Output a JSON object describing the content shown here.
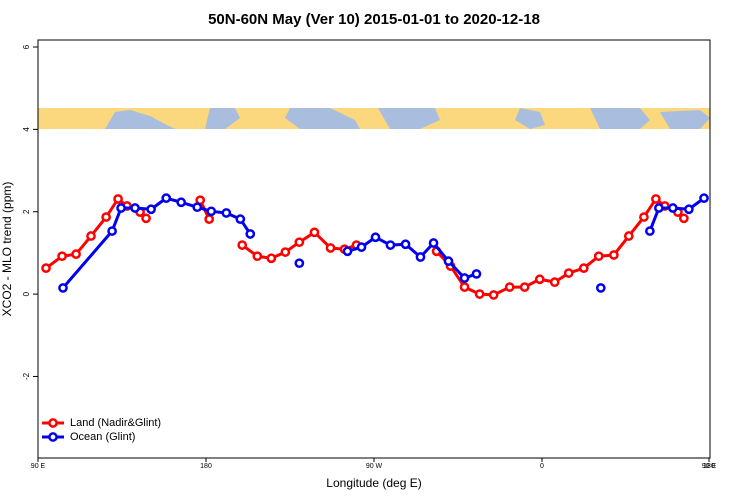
{
  "chart_data": {
    "type": "line",
    "title": "50N-60N May (Ver 10)   2015-01-01 to 2020-12-18",
    "x_label": "Longitude (deg E)",
    "y_label": "XCO2 - MLO trend (ppm)",
    "xlim": [
      90,
      450
    ],
    "xticks": [
      {
        "value": 90,
        "label": "90 E"
      },
      180,
      {
        "value": 270,
        "label": "90 W"
      },
      {
        "value": 360,
        "label": "0"
      },
      {
        "value": 450,
        "label": "90 E"
      },
      {
        "value": 540,
        "label": "180"
      }
    ],
    "ylim": [
      -3.98,
      6.17
    ],
    "yticks": [
      -2,
      0,
      2,
      4,
      6
    ],
    "legend": "bottom-left",
    "series": [
      {
        "name": "Land (Nadir&Glint)",
        "color": "#ff0000",
        "x": [
          94.3,
          102.9,
          110.4,
          118.4,
          126.5,
          132.9,
          137.7,
          144.7,
          147.9,
          null,
          176.9,
          181.7,
          null,
          199.4,
          207.5,
          215,
          222.5,
          230,
          238.1,
          246.7,
          254.2,
          260.6,
          null,
          303.5,
          311,
          318.5,
          326.6,
          334.1,
          342.7,
          350.7,
          358.8,
          366.8,
          374.3,
          382.4,
          390.4,
          398.5,
          406.5,
          414.6,
          421,
          425.8,
          432.8,
          436
        ],
        "values": [
          0.63,
          0.92,
          0.97,
          1.41,
          1.87,
          2.31,
          2.14,
          1.99,
          1.84,
          null,
          2.28,
          1.82,
          null,
          1.19,
          0.92,
          0.87,
          1.02,
          1.26,
          1.5,
          1.12,
          1.09,
          1.19,
          null,
          1.04,
          0.68,
          0.17,
          0,
          -0.02,
          0.17,
          0.17,
          0.36,
          0.29,
          0.51,
          0.63,
          0.92,
          0.95,
          1.41,
          1.87,
          2.31,
          2.14,
          1.99,
          1.84
        ]
      },
      {
        "name": "Ocean (Glint)",
        "color": "#0000ee",
        "x": [
          103.4,
          129.7,
          134.5,
          142,
          150.6,
          158.7,
          166.7,
          175.3,
          182.8,
          190.9,
          198.4,
          203.7,
          null,
          230,
          null,
          255.8,
          263.3,
          270.8,
          278.8,
          286.9,
          294.9,
          301.9,
          309.9,
          318.5,
          324.9,
          null,
          391.5,
          null,
          417.8,
          422.6,
          430.1,
          438.7,
          446.8
        ],
        "values": [
          0.15,
          1.53,
          2.09,
          2.09,
          2.06,
          2.33,
          2.23,
          2.11,
          2.01,
          1.97,
          1.82,
          1.46,
          null,
          0.75,
          null,
          1.04,
          1.14,
          1.38,
          1.19,
          1.21,
          0.9,
          1.24,
          0.8,
          0.39,
          0.49,
          null,
          0.15,
          null,
          1.53,
          2.09,
          2.09,
          2.06,
          2.33
        ]
      }
    ]
  }
}
